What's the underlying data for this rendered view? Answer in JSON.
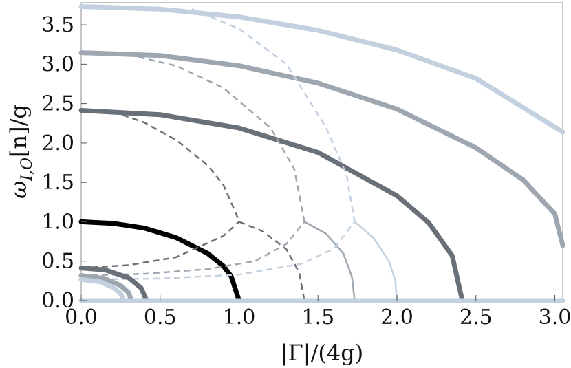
{
  "chart_data": {
    "type": "line",
    "title": "",
    "xlabel": "|Γ|/(4g)",
    "ylabel_parts": [
      "ω",
      "I,O",
      "[n]/g"
    ],
    "xlim": [
      0,
      3.05
    ],
    "ylim": [
      0,
      3.78
    ],
    "x_ticks": [
      "0.0",
      "0.5",
      "1.0",
      "1.5",
      "2.0",
      "2.5",
      "3.0"
    ],
    "x_tick_values": [
      0,
      0.5,
      1.0,
      1.5,
      2.0,
      2.5,
      3.0
    ],
    "y_ticks": [
      "0.0",
      "0.5",
      "1.0",
      "1.5",
      "2.0",
      "2.5",
      "3.0",
      "3.5"
    ],
    "y_tick_values": [
      0,
      0.5,
      1.0,
      1.5,
      2.0,
      2.5,
      3.0,
      3.5
    ],
    "grid": false,
    "legend": "none",
    "series": [
      {
        "n": 1,
        "style": "solid",
        "color": "#000000",
        "x": [
          0,
          0.2,
          0.4,
          0.6,
          0.8,
          0.9,
          0.95,
          1.0
        ],
        "y": [
          1.0,
          0.98,
          0.92,
          0.8,
          0.6,
          0.44,
          0.31,
          0.0
        ]
      },
      {
        "n": 2,
        "style": "solid",
        "color": "#6a7078",
        "x": [
          0,
          0.5,
          1.0,
          1.5,
          2.0,
          2.2,
          2.35,
          2.414
        ],
        "y": [
          2.414,
          2.36,
          2.19,
          1.88,
          1.33,
          0.99,
          0.57,
          0.0
        ]
      },
      {
        "n": 3,
        "style": "solid",
        "color": "#9ea7b0",
        "x": [
          0,
          0.5,
          1.0,
          1.5,
          2.0,
          2.5,
          2.8,
          3.0,
          3.05
        ],
        "y": [
          3.146,
          3.11,
          2.98,
          2.76,
          2.43,
          1.94,
          1.53,
          1.1,
          0.7
        ]
      },
      {
        "n": 4,
        "style": "solid",
        "color": "#c2d0df",
        "x": [
          0,
          0.5,
          1.0,
          1.5,
          2.0,
          2.5,
          3.05
        ],
        "y": [
          3.732,
          3.7,
          3.6,
          3.43,
          3.18,
          2.82,
          2.14
        ]
      },
      {
        "n": 2,
        "style": "dashed",
        "color": "#6a7078",
        "x": [
          0.2,
          0.4,
          0.6,
          0.8,
          0.9,
          0.98,
          1.0
        ],
        "y": [
          2.4,
          2.26,
          2.04,
          1.72,
          1.47,
          1.11,
          1.0
        ]
      },
      {
        "n": 2,
        "style": "dashed",
        "color": "#6a7078",
        "x": [
          0,
          0.3,
          0.6,
          0.9,
          1.0
        ],
        "y": [
          0.414,
          0.45,
          0.55,
          0.82,
          1.0
        ]
      },
      {
        "n": 2,
        "style": "dashed",
        "color": "#6a7078",
        "x": [
          1.0,
          1.15,
          1.3,
          1.38,
          1.414
        ],
        "y": [
          1.0,
          0.88,
          0.65,
          0.36,
          0.0
        ]
      },
      {
        "n": 3,
        "style": "dashed",
        "color": "#9ea7b0",
        "x": [
          0.3,
          0.6,
          0.9,
          1.2,
          1.35,
          1.414
        ],
        "y": [
          3.12,
          2.98,
          2.7,
          2.19,
          1.67,
          1.0
        ]
      },
      {
        "n": 3,
        "style": "dashed",
        "color": "#9ea7b0",
        "x": [
          0,
          0.4,
          0.8,
          1.1,
          1.3,
          1.414
        ],
        "y": [
          0.318,
          0.34,
          0.4,
          0.5,
          0.72,
          1.0
        ]
      },
      {
        "n": 3,
        "style": "solid-thin",
        "color": "#9ea7b0",
        "x": [
          1.414,
          1.55,
          1.66,
          1.715,
          1.732
        ],
        "y": [
          1.0,
          0.85,
          0.6,
          0.3,
          0.0
        ]
      },
      {
        "n": 4,
        "style": "dashed",
        "color": "#c2d0df",
        "x": [
          0.7,
          1.0,
          1.3,
          1.55,
          1.68,
          1.732
        ],
        "y": [
          3.7,
          3.45,
          3.0,
          2.2,
          1.6,
          1.0
        ]
      },
      {
        "n": 4,
        "style": "dashed",
        "color": "#c2d0df",
        "x": [
          0,
          0.5,
          1.0,
          1.4,
          1.6,
          1.732
        ],
        "y": [
          0.268,
          0.28,
          0.33,
          0.47,
          0.66,
          1.0
        ]
      },
      {
        "n": 4,
        "style": "solid-thin",
        "color": "#c2d0df",
        "x": [
          1.732,
          1.85,
          1.95,
          1.99,
          2.0
        ],
        "y": [
          1.0,
          0.8,
          0.5,
          0.25,
          0.0
        ]
      },
      {
        "n": 2,
        "style": "solid",
        "color": "#6a7078",
        "x": [
          0,
          0.15,
          0.3,
          0.38,
          0.414
        ],
        "y": [
          0.414,
          0.39,
          0.29,
          0.16,
          0.0
        ]
      },
      {
        "n": 3,
        "style": "solid",
        "color": "#9ea7b0",
        "x": [
          0,
          0.15,
          0.25,
          0.3,
          0.318
        ],
        "y": [
          0.318,
          0.28,
          0.19,
          0.1,
          0.0
        ]
      },
      {
        "n": 4,
        "style": "solid",
        "color": "#c2d0df",
        "x": [
          0,
          0.12,
          0.2,
          0.25,
          0.268
        ],
        "y": [
          0.268,
          0.24,
          0.17,
          0.09,
          0.0
        ]
      },
      {
        "n": 0,
        "style": "solid",
        "color": "#c2d0df",
        "x": [
          0,
          3.05
        ],
        "y": [
          0,
          0
        ]
      }
    ]
  }
}
